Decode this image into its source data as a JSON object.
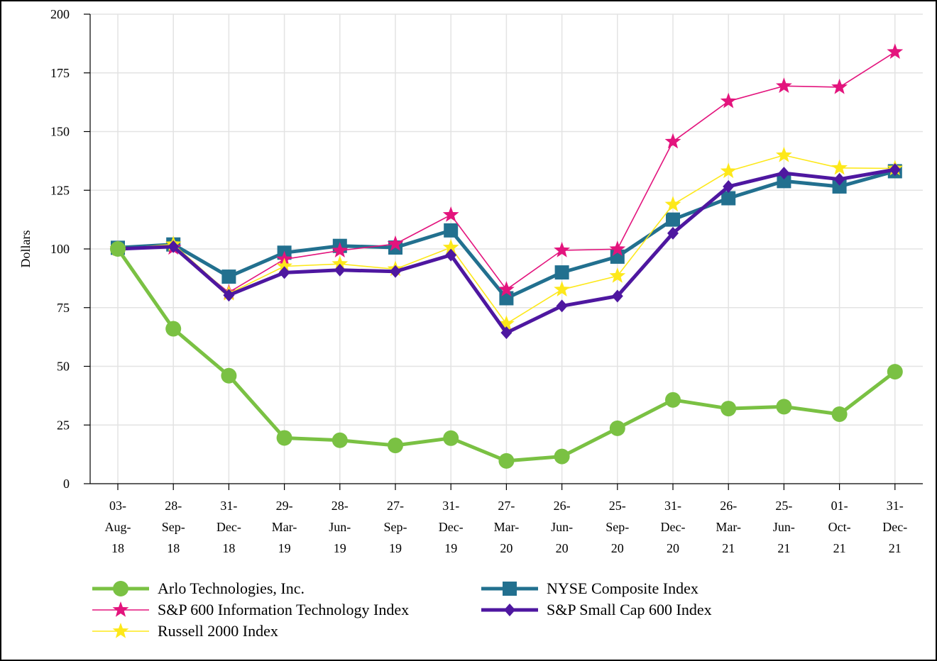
{
  "chart_data": {
    "type": "line",
    "ylabel": "Dollars",
    "ylim": [
      0,
      200
    ],
    "yticks": [
      0,
      25,
      50,
      75,
      100,
      125,
      150,
      175,
      200
    ],
    "grid": true,
    "legend_position": "bottom",
    "categories": [
      [
        "03-",
        "Aug-",
        "18"
      ],
      [
        "28-",
        "Sep-",
        "18"
      ],
      [
        "31-",
        "Dec-",
        "18"
      ],
      [
        "29-",
        "Mar-",
        "19"
      ],
      [
        "28-",
        "Jun-",
        "19"
      ],
      [
        "27-",
        "Sep-",
        "19"
      ],
      [
        "31-",
        "Dec-",
        "19"
      ],
      [
        "27-",
        "Mar-",
        "20"
      ],
      [
        "26-",
        "Jun-",
        "20"
      ],
      [
        "25-",
        "Sep-",
        "20"
      ],
      [
        "31-",
        "Dec-",
        "20"
      ],
      [
        "26-",
        "Mar-",
        "21"
      ],
      [
        "25-",
        "Jun-",
        "21"
      ],
      [
        "01-",
        "Oct-",
        "21"
      ],
      [
        "31-",
        "Dec-",
        "21"
      ]
    ],
    "series": [
      {
        "name": "Arlo Technologies, Inc.",
        "color": "#7ac143",
        "marker": "circle",
        "values": [
          100,
          66,
          46,
          19.5,
          18.5,
          16.3,
          19.4,
          9.7,
          11.6,
          23.6,
          35.7,
          32,
          32.8,
          29.6,
          47.7
        ]
      },
      {
        "name": "S&P 600 Information Technology Index",
        "color": "#e3147d",
        "marker": "star",
        "values": [
          100,
          100.5,
          81.5,
          95.6,
          99.3,
          102.1,
          114.5,
          82.7,
          99.4,
          99.9,
          145.7,
          162.9,
          169.4,
          168.9,
          183.9
        ]
      },
      {
        "name": "Russell 2000 Index",
        "color": "#fde81a",
        "marker": "star",
        "values": [
          100,
          102,
          81,
          92.6,
          93.6,
          91.4,
          100.6,
          68.1,
          82.7,
          88.5,
          118.9,
          133.1,
          139.9,
          134.5,
          134.3
        ]
      },
      {
        "name": "NYSE Composite Index",
        "color": "#22708f",
        "marker": "square",
        "values": [
          100.5,
          101.9,
          88.2,
          98.4,
          101.3,
          100.6,
          107.9,
          79,
          90,
          96.7,
          112.5,
          121.6,
          128.9,
          126.6,
          133.1
        ]
      },
      {
        "name": "S&P Small Cap 600 Index",
        "color": "#4e17a0",
        "marker": "diamond",
        "values": [
          100,
          101,
          80.3,
          89.9,
          91,
          90.4,
          97.4,
          64.3,
          75.7,
          79.9,
          106.7,
          126.6,
          132.3,
          129.7,
          133.8
        ]
      }
    ],
    "draw_order": [
      "NYSE Composite Index",
      "S&P 600 Information Technology Index",
      "Russell 2000 Index",
      "S&P Small Cap 600 Index",
      "Arlo Technologies, Inc."
    ],
    "legend": [
      "Arlo Technologies, Inc.",
      "S&P 600 Information Technology Index",
      "Russell 2000 Index",
      "NYSE Composite Index",
      "S&P Small Cap 600 Index"
    ]
  }
}
